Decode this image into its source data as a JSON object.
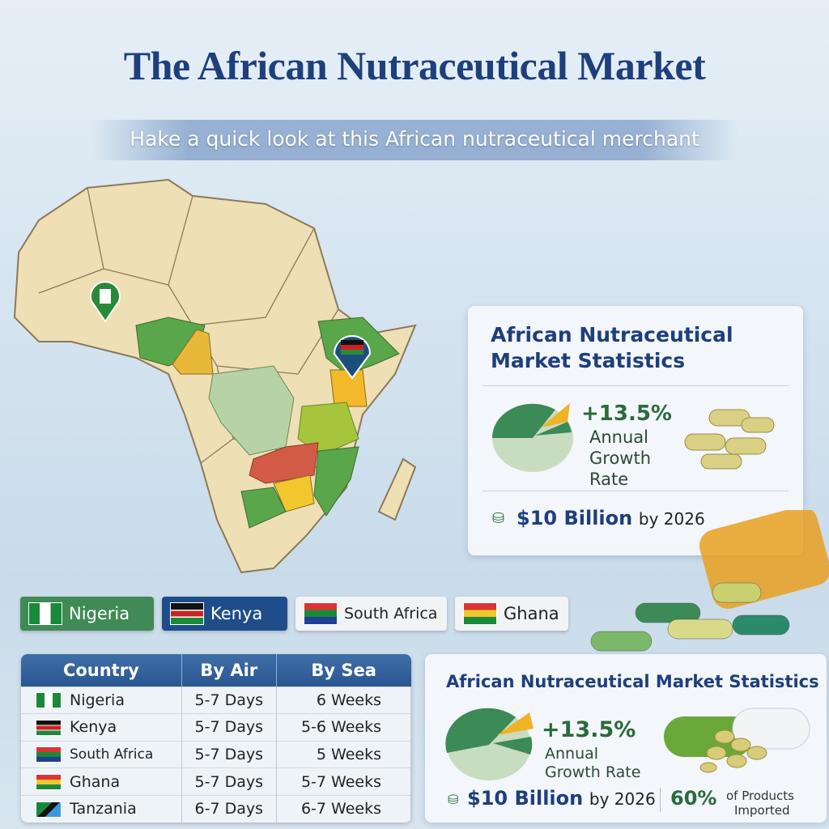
{
  "header": {
    "title": "The African Nutraceutical Market",
    "subtitle": "Hake a quick look at this African nutraceutical merchant"
  },
  "colors": {
    "title": "#1d3f7c",
    "green": "#2a6b3b",
    "accent": "#f0b323"
  },
  "stats_card_top": {
    "title": "African Nutraceutical Market Statistics",
    "growth_value": "+13.5%",
    "growth_label_1": "Annual",
    "growth_label_2": "Growth",
    "growth_label_3": "Rate",
    "market_value": "$10 Billion",
    "market_year": "by 2026",
    "icon": "coin-stack-icon"
  },
  "country_pills": [
    {
      "label": "Nigeria"
    },
    {
      "label": "Kenya"
    },
    {
      "label": "South Africa"
    },
    {
      "label": "Ghana"
    }
  ],
  "shipping_table": {
    "headers": [
      "Country",
      "By Air",
      "By Sea"
    ],
    "rows": [
      {
        "country": "Nigeria",
        "air": "5-7 Days",
        "sea": "6 Weeks"
      },
      {
        "country": "Kenya",
        "air": "5-7 Days",
        "sea": "5-6 Weeks"
      },
      {
        "country": "South Africa",
        "air": "5-7 Days",
        "sea": "5 Weeks"
      },
      {
        "country": "Ghana",
        "air": "5-7 Days",
        "sea": "5-7 Weeks"
      },
      {
        "country": "Tanzania",
        "air": "6-7 Days",
        "sea": "6-7 Weeks"
      }
    ]
  },
  "stats_card_bottom": {
    "title": "African Nutraceutical Market Statistics",
    "growth_value": "+13.5%",
    "growth_label_1": "Annual",
    "growth_label_2": "Growth Rate",
    "market_value": "$10 Billion",
    "market_year": "by 2026",
    "import_value": "60%",
    "import_label_1": "of Products",
    "import_label_2": "Imported"
  }
}
